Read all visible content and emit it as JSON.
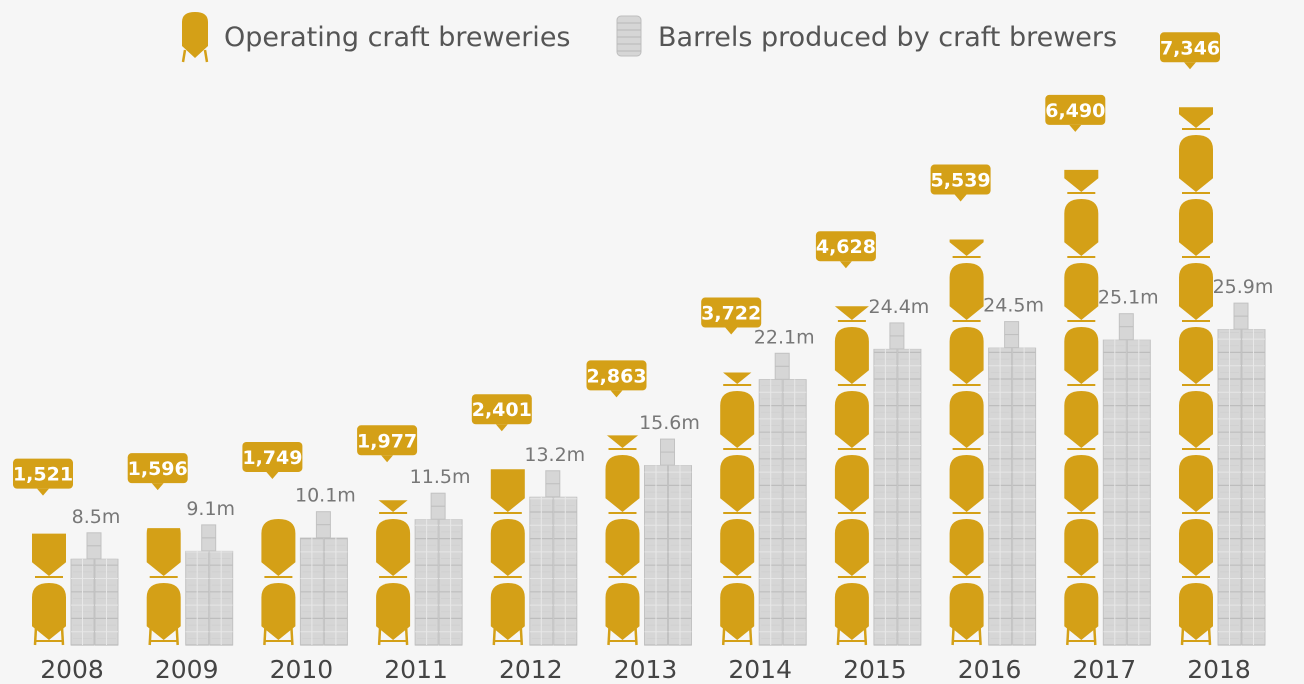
{
  "legend": {
    "breweries": {
      "label": "Operating craft breweries",
      "color": "#d4a017",
      "icon": "fermentation-tank-icon"
    },
    "barrels": {
      "label": "Barrels produced by craft brewers",
      "color": "#d6d6d6",
      "icon": "barrel-stack-icon"
    }
  },
  "chart_data": {
    "type": "bar",
    "categories": [
      "2008",
      "2009",
      "2010",
      "2011",
      "2012",
      "2013",
      "2014",
      "2015",
      "2016",
      "2017",
      "2018"
    ],
    "series": [
      {
        "name": "Operating craft breweries",
        "values": [
          1521,
          1596,
          1749,
          1977,
          2401,
          2863,
          3722,
          4628,
          5539,
          6490,
          7346
        ],
        "labels": [
          "1,521",
          "1,596",
          "1,749",
          "1,977",
          "2,401",
          "2,863",
          "3,722",
          "4,628",
          "5,539",
          "6,490",
          "7,346"
        ],
        "color": "#d4a017"
      },
      {
        "name": "Barrels produced by craft brewers",
        "values": [
          8.5,
          9.1,
          10.1,
          11.5,
          13.2,
          15.6,
          22.1,
          24.4,
          24.5,
          25.1,
          25.9
        ],
        "labels": [
          "8.5m",
          "9.1m",
          "10.1m",
          "11.5m",
          "13.2m",
          "15.6m",
          "22.1m",
          "24.4m",
          "24.5m",
          "25.1m",
          "25.9m"
        ],
        "unit": "m",
        "color": "#d6d6d6"
      }
    ],
    "legend_position": "top-center",
    "grid": false
  }
}
